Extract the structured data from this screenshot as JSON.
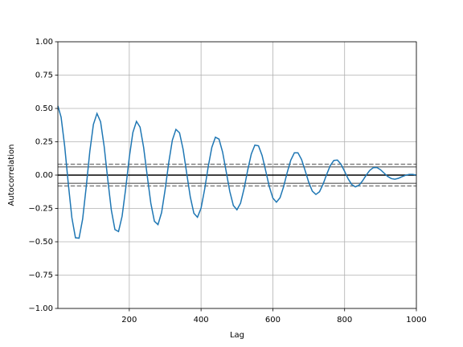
{
  "chart_data": {
    "type": "line",
    "x_label": "Lag",
    "y_label": "Autocorrelation",
    "x": [
      1,
      10,
      20,
      30,
      40,
      50,
      60,
      70,
      80,
      90,
      100,
      110,
      120,
      130,
      140,
      150,
      160,
      170,
      180,
      190,
      200,
      210,
      220,
      230,
      240,
      250,
      260,
      270,
      280,
      290,
      300,
      310,
      320,
      330,
      340,
      350,
      360,
      370,
      380,
      390,
      400,
      410,
      420,
      430,
      440,
      450,
      460,
      470,
      480,
      490,
      500,
      510,
      520,
      530,
      540,
      550,
      560,
      570,
      580,
      590,
      600,
      610,
      620,
      630,
      640,
      650,
      660,
      670,
      680,
      690,
      700,
      710,
      720,
      730,
      740,
      750,
      760,
      770,
      780,
      790,
      800,
      810,
      820,
      830,
      840,
      850,
      860,
      870,
      880,
      890,
      900,
      910,
      920,
      930,
      940,
      950,
      960,
      970,
      980,
      990,
      1000
    ],
    "series": [
      {
        "color": "#1f77b4",
        "values": [
          0.519,
          0.434,
          0.216,
          -0.064,
          -0.319,
          -0.47,
          -0.473,
          -0.33,
          -0.088,
          0.177,
          0.38,
          0.462,
          0.4,
          0.215,
          -0.032,
          -0.263,
          -0.408,
          -0.423,
          -0.308,
          -0.1,
          0.133,
          0.32,
          0.403,
          0.36,
          0.207,
          -0.005,
          -0.211,
          -0.346,
          -0.371,
          -0.281,
          -0.107,
          0.095,
          0.262,
          0.343,
          0.317,
          0.193,
          0.014,
          -0.164,
          -0.286,
          -0.316,
          -0.248,
          -0.106,
          0.064,
          0.208,
          0.284,
          0.27,
          0.173,
          0.027,
          -0.122,
          -0.228,
          -0.26,
          -0.211,
          -0.1,
          0.038,
          0.158,
          0.225,
          0.22,
          0.148,
          0.034,
          -0.085,
          -0.172,
          -0.203,
          -0.17,
          -0.087,
          0.019,
          0.112,
          0.167,
          0.167,
          0.117,
          0.034,
          -0.054,
          -0.12,
          -0.145,
          -0.125,
          -0.068,
          0.005,
          0.071,
          0.11,
          0.113,
          0.081,
          0.028,
          -0.029,
          -0.071,
          -0.088,
          -0.076,
          -0.043,
          -0.001,
          0.035,
          0.056,
          0.057,
          0.04,
          0.015,
          -0.01,
          -0.026,
          -0.031,
          -0.024,
          -0.012,
          -0.001,
          0.005,
          0.005,
          0
        ]
      }
    ],
    "reference_lines": [
      {
        "value": 0.0815,
        "color": "grey",
        "dashed": true
      },
      {
        "value": 0.062,
        "color": "grey",
        "dashed": false
      },
      {
        "value": 0,
        "color": "black",
        "dashed": false
      },
      {
        "value": -0.062,
        "color": "grey",
        "dashed": false
      },
      {
        "value": -0.0815,
        "color": "grey",
        "dashed": true
      }
    ],
    "xlim": [
      1,
      1000
    ],
    "xticks": [
      200,
      400,
      600,
      800,
      1000
    ],
    "ylim": [
      -1,
      1
    ],
    "yticks": [
      {
        "value": -1,
        "label": "−1.00"
      },
      {
        "value": -0.75,
        "label": "−0.75"
      },
      {
        "value": -0.5,
        "label": "−0.50"
      },
      {
        "value": -0.25,
        "label": "−0.25"
      },
      {
        "value": 0,
        "label": "0.00"
      },
      {
        "value": 0.25,
        "label": "0.25"
      },
      {
        "value": 0.5,
        "label": "0.50"
      },
      {
        "value": 0.75,
        "label": "0.75"
      },
      {
        "value": 1,
        "label": "1.00"
      }
    ],
    "grid": true
  }
}
